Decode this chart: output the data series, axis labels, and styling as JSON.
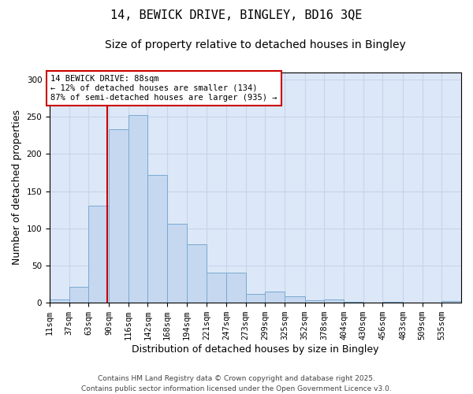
{
  "title_line1": "14, BEWICK DRIVE, BINGLEY, BD16 3QE",
  "title_line2": "Size of property relative to detached houses in Bingley",
  "xlabel": "Distribution of detached houses by size in Bingley",
  "ylabel": "Number of detached properties",
  "bin_labels": [
    "11sqm",
    "37sqm",
    "63sqm",
    "90sqm",
    "116sqm",
    "142sqm",
    "168sqm",
    "194sqm",
    "221sqm",
    "247sqm",
    "273sqm",
    "299sqm",
    "325sqm",
    "352sqm",
    "378sqm",
    "404sqm",
    "430sqm",
    "456sqm",
    "483sqm",
    "509sqm",
    "535sqm"
  ],
  "bin_edges": [
    11,
    37,
    63,
    90,
    116,
    142,
    168,
    194,
    221,
    247,
    273,
    299,
    325,
    352,
    378,
    404,
    430,
    456,
    483,
    509,
    535,
    561
  ],
  "bar_heights": [
    4,
    21,
    130,
    233,
    252,
    172,
    106,
    79,
    40,
    41,
    12,
    15,
    9,
    3,
    4,
    1,
    0,
    1,
    0,
    0,
    2
  ],
  "bar_color": "#c5d8f0",
  "bar_edge_color": "#7aaad0",
  "vline_x": 88,
  "vline_color": "#cc0000",
  "annotation_text": "14 BEWICK DRIVE: 88sqm\n← 12% of detached houses are smaller (134)\n87% of semi-detached houses are larger (935) →",
  "annotation_box_color": "#ffffff",
  "annotation_box_edge": "#cc0000",
  "ylim": [
    0,
    310
  ],
  "yticks": [
    0,
    50,
    100,
    150,
    200,
    250,
    300
  ],
  "grid_color": "#c8d4e8",
  "background_color": "#dce8f8",
  "footer_text": "Contains HM Land Registry data © Crown copyright and database right 2025.\nContains public sector information licensed under the Open Government Licence v3.0.",
  "title_fontsize": 11,
  "subtitle_fontsize": 10,
  "tick_fontsize": 7.5,
  "label_fontsize": 9,
  "annotation_fontsize": 7.5,
  "footer_fontsize": 6.5
}
